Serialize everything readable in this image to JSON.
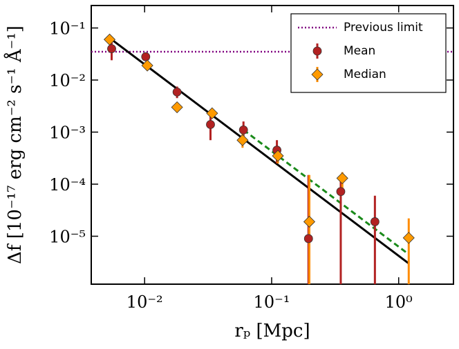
{
  "chart_data": {
    "type": "scatter",
    "xlabel": "rₚ [Mpc]",
    "ylabel": "Δf [10⁻¹⁷ erg cm⁻² s⁻¹ Å⁻¹]",
    "log_x": true,
    "log_y": true,
    "xlim": [
      0.0038,
      2.7
    ],
    "ylim": [
      1.2e-06,
      0.27
    ],
    "xticks": [
      {
        "value": 0.01,
        "label": "10⁻²"
      },
      {
        "value": 0.1,
        "label": "10⁻¹"
      },
      {
        "value": 1,
        "label": "10⁰"
      }
    ],
    "yticks": [
      {
        "value": 0.1,
        "label": "10⁻¹"
      },
      {
        "value": 0.01,
        "label": "10⁻²"
      },
      {
        "value": 0.001,
        "label": "10⁻³"
      },
      {
        "value": 0.0001,
        "label": "10⁻⁴"
      },
      {
        "value": 1e-05,
        "label": "10⁻⁵"
      }
    ],
    "legend": "upper right",
    "series": [
      {
        "name": "Previous limit",
        "color": "#800080",
        "marker": "none",
        "style": "dotted",
        "x": [
          0.0038,
          2.7
        ],
        "values": [
          0.035,
          0.035
        ]
      },
      {
        "name": "Mean",
        "color": "#b22222",
        "marker": "circle",
        "x": [
          0.0055,
          0.0102,
          0.018,
          0.033,
          0.06,
          0.11,
          0.195,
          0.35,
          0.65
        ],
        "values": [
          0.04,
          0.028,
          0.0059,
          0.0014,
          0.0011,
          0.00045,
          9e-06,
          7.2e-05,
          1.9e-05
        ],
        "upper": [
          0.065,
          0.033,
          0.0075,
          0.0025,
          0.0016,
          0.0007,
          0.00015,
          0.00013,
          6e-05
        ],
        "lower": [
          0.024,
          0.024,
          0.0045,
          0.0007,
          0.0007,
          0.00025,
          1e-06,
          1e-06,
          1e-06
        ]
      },
      {
        "name": "Median",
        "color": "#ff9a00",
        "marker": "diamond",
        "x": [
          0.0053,
          0.0105,
          0.018,
          0.034,
          0.059,
          0.112,
          0.198,
          0.36,
          1.2
        ],
        "values": [
          0.06,
          0.019,
          0.003,
          0.0023,
          0.0007,
          0.00035,
          1.9e-05,
          0.00013,
          9.3e-06
        ],
        "upper": [
          0.065,
          0.022,
          0.0037,
          0.0027,
          0.001,
          0.00045,
          0.00015,
          0.00017,
          2.2e-05
        ],
        "lower": [
          0.055,
          0.017,
          0.0025,
          0.002,
          0.0005,
          0.00025,
          1e-06,
          8e-05,
          1e-06
        ]
      },
      {
        "color": "#000000",
        "marker": "none",
        "style": "solid",
        "x": [
          0.0055,
          1.2
        ],
        "values": [
          0.06,
          3e-06
        ]
      },
      {
        "color": "#1a8a1a",
        "marker": "none",
        "style": "dashed",
        "x": [
          0.06,
          1.2
        ],
        "values": [
          0.0011,
          4.5e-06
        ]
      }
    ]
  }
}
